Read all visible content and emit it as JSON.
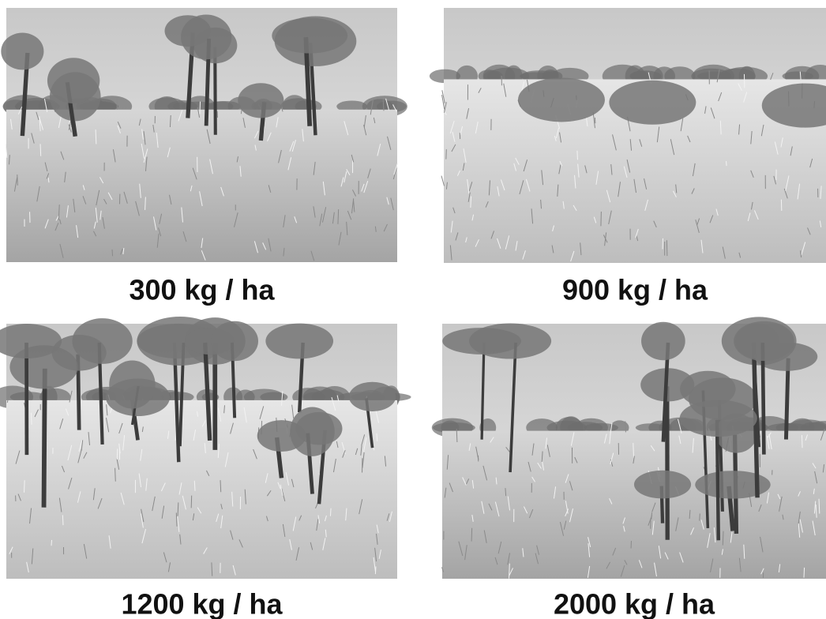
{
  "panels": [
    {
      "caption": "300 kg / ha"
    },
    {
      "caption": "900 kg / ha"
    },
    {
      "caption": "1200 kg / ha"
    },
    {
      "caption": "2000 kg / ha"
    }
  ]
}
